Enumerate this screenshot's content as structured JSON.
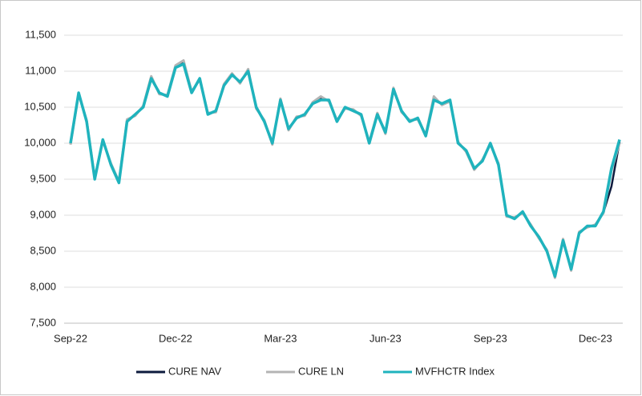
{
  "chart_data": {
    "type": "line",
    "categories": [
      "Sep-22",
      null,
      null,
      null,
      null,
      null,
      null,
      null,
      null,
      null,
      null,
      null,
      null,
      "Dec-22",
      null,
      null,
      null,
      null,
      null,
      null,
      null,
      null,
      null,
      null,
      null,
      null,
      "Mar-23",
      null,
      null,
      null,
      null,
      null,
      null,
      null,
      null,
      null,
      null,
      null,
      null,
      "Jun-23",
      null,
      null,
      null,
      null,
      null,
      null,
      null,
      null,
      null,
      null,
      null,
      null,
      "Sep-23",
      null,
      null,
      null,
      null,
      null,
      null,
      null,
      null,
      null,
      null,
      null,
      null,
      "Dec-23",
      null,
      null,
      null
    ],
    "series": [
      {
        "name": "CURE NAV",
        "color": "#0d1b3e",
        "values": [
          9990,
          10690,
          10310,
          9510,
          10040,
          9710,
          9460,
          10310,
          10390,
          10510,
          10910,
          10690,
          10660,
          11060,
          11120,
          10710,
          10890,
          10410,
          10440,
          10810,
          10960,
          10840,
          11010,
          10490,
          10310,
          9990,
          10610,
          10190,
          10360,
          10390,
          10560,
          10620,
          10590,
          10310,
          10490,
          10460,
          10390,
          10010,
          10410,
          10140,
          10760,
          10440,
          10310,
          10340,
          10110,
          10620,
          10540,
          10590,
          10010,
          9890,
          9640,
          9760,
          9990,
          9710,
          8990,
          8960,
          9040,
          8860,
          8690,
          8510,
          8140,
          8660,
          8240,
          8760,
          8840,
          8860,
          9040,
          9400,
          10020
        ]
      },
      {
        "name": "CURE LN",
        "color": "#b4b4b4",
        "values": [
          9980,
          10680,
          10320,
          9520,
          10030,
          9720,
          9470,
          10330,
          10380,
          10520,
          10930,
          10680,
          10670,
          11080,
          11150,
          10720,
          10880,
          10420,
          10430,
          10820,
          10970,
          10830,
          11030,
          10480,
          10320,
          9980,
          10620,
          10180,
          10370,
          10380,
          10570,
          10650,
          10580,
          10320,
          10480,
          10470,
          10380,
          10020,
          10420,
          10130,
          10770,
          10430,
          10320,
          10330,
          10120,
          10650,
          10530,
          10580,
          10020,
          9880,
          9630,
          9770,
          9980,
          9720,
          8980,
          8970,
          9030,
          8870,
          8680,
          8520,
          8130,
          8670,
          8230,
          8770,
          8830,
          8870,
          9030,
          9620,
          10000
        ]
      },
      {
        "name": "MVFHCTR Index",
        "color": "#1fb3bd",
        "values": [
          10000,
          10700,
          10300,
          9500,
          10050,
          9700,
          9450,
          10300,
          10400,
          10500,
          10900,
          10700,
          10650,
          11050,
          11100,
          10700,
          10900,
          10400,
          10450,
          10800,
          10950,
          10850,
          11000,
          10500,
          10300,
          10000,
          10600,
          10200,
          10350,
          10400,
          10550,
          10600,
          10600,
          10300,
          10500,
          10450,
          10400,
          10000,
          10400,
          10150,
          10750,
          10450,
          10300,
          10350,
          10100,
          10600,
          10550,
          10600,
          10000,
          9900,
          9650,
          9750,
          10000,
          9700,
          9000,
          8950,
          9050,
          8850,
          8700,
          8500,
          8150,
          8650,
          8250,
          8750,
          8850,
          8850,
          9050,
          9650,
          10050
        ]
      }
    ],
    "ylim": [
      7500,
      11500
    ],
    "yticks": [
      {
        "value": 7500,
        "label": "7,500"
      },
      {
        "value": 8000,
        "label": "8,000"
      },
      {
        "value": 8500,
        "label": "8,500"
      },
      {
        "value": 9000,
        "label": "9,000"
      },
      {
        "value": 9500,
        "label": "9,500"
      },
      {
        "value": 10000,
        "label": "10,000"
      },
      {
        "value": 10500,
        "label": "10,500"
      },
      {
        "value": 11000,
        "label": "11,000"
      },
      {
        "value": 11500,
        "label": "11,500"
      }
    ],
    "grid": true,
    "legend": "bottom"
  }
}
